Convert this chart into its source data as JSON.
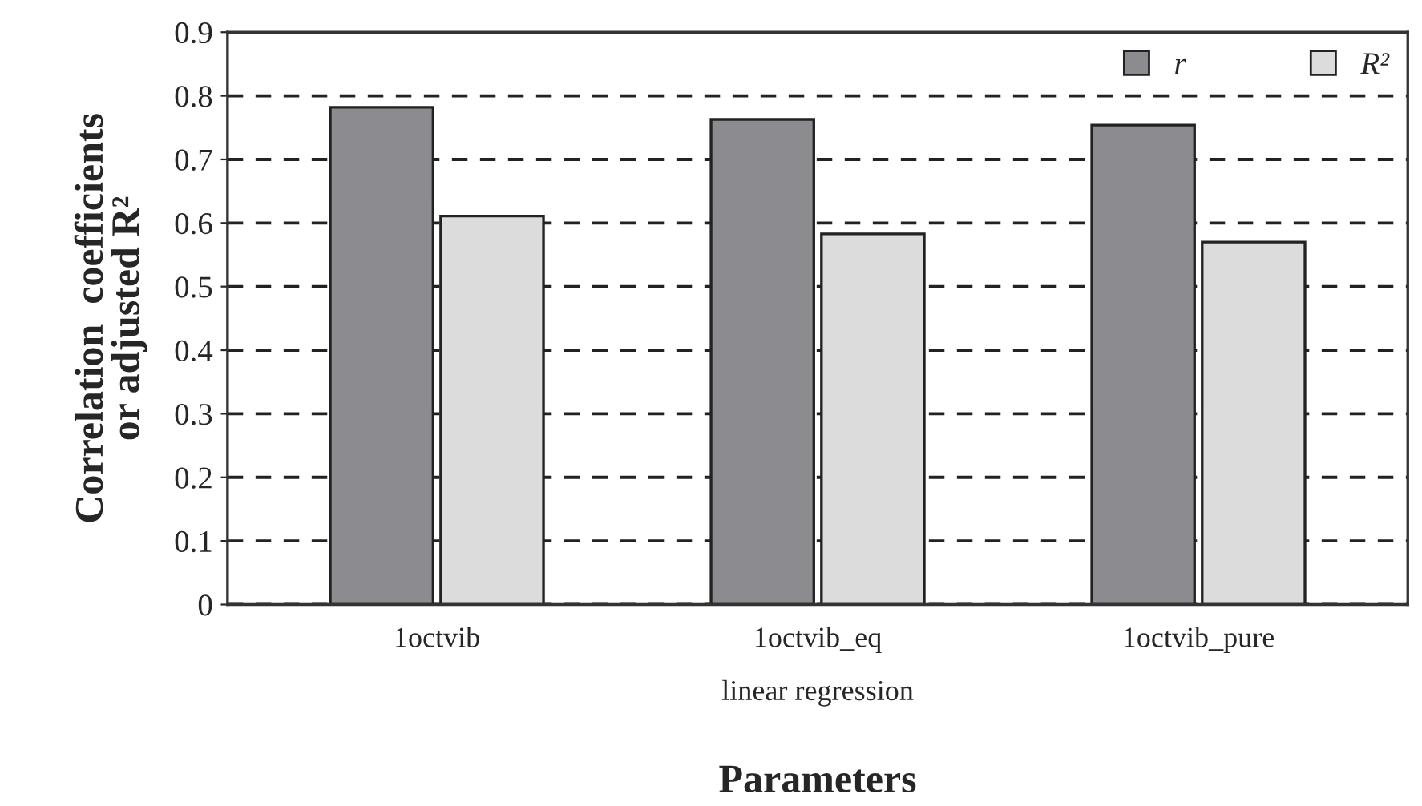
{
  "chart_data": {
    "type": "bar",
    "xlabel": "Parameters",
    "ylabel": "Correlation  coefficients\nor adjusted R²",
    "categories": [
      "1octvib",
      "1octvib_eq",
      "1octvib_pure"
    ],
    "series": [
      {
        "name": "r",
        "color": "#8c8c90",
        "values": [
          0.782,
          0.763,
          0.754
        ]
      },
      {
        "name": "R²",
        "color": "#dcdcdc",
        "values": [
          0.611,
          0.583,
          0.57
        ]
      }
    ],
    "annotations": [
      "linear regression"
    ],
    "ylim": [
      0,
      0.9
    ],
    "yticks": [
      "0",
      0.1,
      0.2,
      0.3,
      0.4,
      0.5,
      0.6,
      0.7,
      0.8,
      0.9
    ],
    "grid": "y",
    "legend": "top right"
  }
}
